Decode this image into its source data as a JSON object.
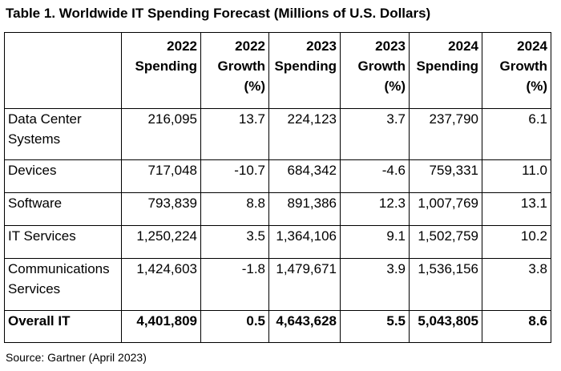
{
  "title": "Table 1. Worldwide IT Spending Forecast (Millions of U.S. Dollars)",
  "headers": [
    [
      "",
      "",
      ""
    ],
    [
      "2022",
      "Spending",
      ""
    ],
    [
      "2022",
      "Growth",
      "(%)"
    ],
    [
      "2023",
      "Spending",
      ""
    ],
    [
      "2023",
      "Growth",
      "(%)"
    ],
    [
      "2024",
      "Spending",
      ""
    ],
    [
      "2024",
      "Growth",
      "(%)"
    ]
  ],
  "rows": [
    {
      "label": [
        "Data Center",
        "Systems"
      ],
      "values": [
        "216,095",
        "13.7",
        "224,123",
        "3.7",
        "237,790",
        "6.1"
      ]
    },
    {
      "label": [
        "Devices",
        ""
      ],
      "values": [
        "717,048",
        "-10.7",
        "684,342",
        "-4.6",
        "759,331",
        "11.0"
      ]
    },
    {
      "label": [
        "Software",
        ""
      ],
      "values": [
        "793,839",
        "8.8",
        "891,386",
        "12.3",
        "1,007,769",
        "13.1"
      ]
    },
    {
      "label": [
        "IT Services",
        ""
      ],
      "values": [
        "1,250,224",
        "3.5",
        "1,364,106",
        "9.1",
        "1,502,759",
        "10.2"
      ]
    },
    {
      "label": [
        "Communications",
        "Services"
      ],
      "values": [
        "1,424,603",
        "-1.8",
        "1,479,671",
        "3.9",
        "1,536,156",
        "3.8"
      ]
    }
  ],
  "total": {
    "label": "Overall IT",
    "values": [
      "4,401,809",
      "0.5",
      "4,643,628",
      "5.5",
      "5,043,805",
      "8.6"
    ]
  },
  "source": "Source: Gartner (April 2023)"
}
